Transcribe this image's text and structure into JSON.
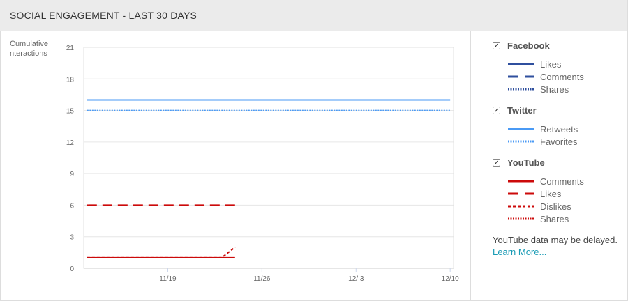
{
  "header": {
    "title": "SOCIAL ENGAGEMENT - LAST 30 DAYS"
  },
  "chart_data": {
    "type": "line",
    "ylabel": "Cumulative\nnteractions",
    "ylabel_lines": [
      "Cumulative",
      "nteractions"
    ],
    "ylim": [
      0,
      21
    ],
    "yticks": [
      0,
      3,
      6,
      9,
      12,
      15,
      18,
      21
    ],
    "xlim": [
      "11/12",
      "12/10"
    ],
    "xticks": [
      "11/19",
      "11/26",
      "12/ 3",
      "12/10"
    ],
    "grid": true,
    "series": [
      {
        "name": "Retweets",
        "network": "Twitter",
        "color": "#4a9af5",
        "style": "solid",
        "points": [
          [
            "11/13",
            16
          ],
          [
            "12/10",
            16
          ]
        ]
      },
      {
        "name": "Favorites",
        "network": "Twitter",
        "color": "#4a9af5",
        "style": "dotted",
        "points": [
          [
            "11/13",
            15
          ],
          [
            "12/10",
            15
          ]
        ]
      },
      {
        "name": "Likes",
        "network": "YouTube",
        "color": "#cc0a0a",
        "style": "dashed",
        "points": [
          [
            "11/13",
            6
          ],
          [
            "11/24",
            6
          ]
        ]
      },
      {
        "name": "Comments",
        "network": "YouTube",
        "color": "#cc0a0a",
        "style": "solid",
        "points": [
          [
            "11/13",
            1
          ],
          [
            "11/24",
            1
          ]
        ]
      },
      {
        "name": "Dislikes",
        "network": "YouTube",
        "color": "#cc0a0a",
        "style": "shortdash",
        "points": [
          [
            "11/13",
            1
          ],
          [
            "11/23",
            1
          ],
          [
            "11/24",
            2
          ]
        ]
      }
    ]
  },
  "legend": {
    "groups": [
      {
        "name": "Facebook",
        "checked": true,
        "items": [
          {
            "label": "Likes",
            "color": "#2f4f9e",
            "style": "solid"
          },
          {
            "label": "Comments",
            "color": "#2f4f9e",
            "style": "dashed"
          },
          {
            "label": "Shares",
            "color": "#2f4f9e",
            "style": "dotted"
          }
        ]
      },
      {
        "name": "Twitter",
        "checked": true,
        "items": [
          {
            "label": "Retweets",
            "color": "#4a9af5",
            "style": "solid"
          },
          {
            "label": "Favorites",
            "color": "#4a9af5",
            "style": "dotted"
          }
        ]
      },
      {
        "name": "YouTube",
        "checked": true,
        "items": [
          {
            "label": "Comments",
            "color": "#cc0a0a",
            "style": "solid"
          },
          {
            "label": "Likes",
            "color": "#cc0a0a",
            "style": "dashed"
          },
          {
            "label": "Dislikes",
            "color": "#cc0a0a",
            "style": "shortdash"
          },
          {
            "label": "Shares",
            "color": "#cc0a0a",
            "style": "dotted"
          }
        ]
      }
    ],
    "note": "YouTube data may be delayed.",
    "link": "Learn More..."
  }
}
